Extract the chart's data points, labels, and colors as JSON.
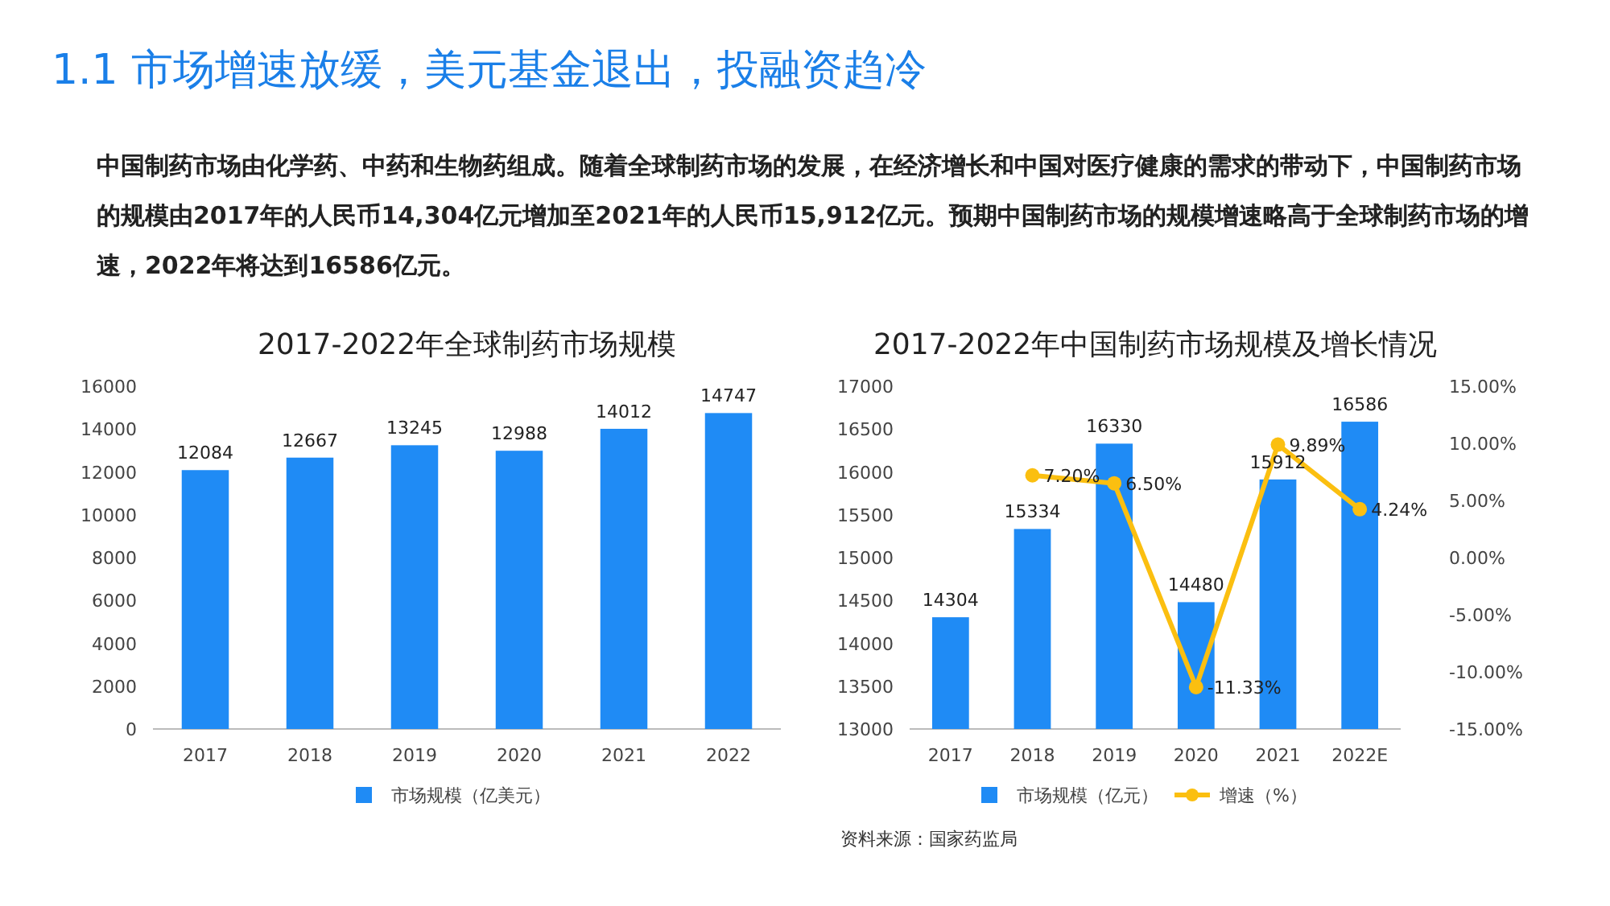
{
  "chart_data": [
    {
      "type": "other",
      "title": "1.1 市场增速放缓，美元基金退出，投融资趋冷",
      "annotations": [
        "中国制药市场由化学药、中药和生物药组成。随着全球制药市场的发展，在经济增长和中国对医疗健康的需求的带动下，中国制药市场的规模由2017年的人民币14,304亿元增加至2021年的人民币15,912亿元。预期中国制药市场的规模增速略高于全球制药市场的增速，2022年将达到16586亿元。"
      ]
    },
    {
      "type": "bar",
      "title": "2017-2022年全球制药市场规模",
      "categories": [
        "2017",
        "2018",
        "2019",
        "2020",
        "2021",
        "2022"
      ],
      "ylim": [
        0,
        16000
      ],
      "yticks": [
        0,
        2000,
        4000,
        6000,
        8000,
        10000,
        12000,
        14000,
        16000
      ],
      "data_labels": true,
      "legend": "bottom",
      "series": [
        {
          "name": "市场规模（亿美元）",
          "color": "#1f8bf5",
          "values": [
            12084,
            12667,
            13245,
            12988,
            14012,
            14747
          ]
        }
      ]
    },
    {
      "type": "bar",
      "title": "2017-2022年中国制药市场规模及增长情况",
      "categories": [
        "2017",
        "2018",
        "2019",
        "2020",
        "2021",
        "2022E"
      ],
      "ylim": [
        13000,
        17000
      ],
      "yticks": [
        13000,
        13500,
        14000,
        14500,
        15000,
        15500,
        16000,
        16500,
        17000
      ],
      "y2lim": [
        -15,
        15
      ],
      "y2ticks": [
        {
          "value": -15,
          "label": "-15.00%"
        },
        {
          "value": -10,
          "label": "-10.00%"
        },
        {
          "value": -5,
          "label": "-5.00%"
        },
        {
          "value": 0,
          "label": "0.00%"
        },
        {
          "value": 5,
          "label": "5.00%"
        },
        {
          "value": 10,
          "label": "10.00%"
        },
        {
          "value": 15,
          "label": "15.00%"
        }
      ],
      "data_labels": true,
      "legend": "bottom",
      "marker": "circle",
      "annotations": [
        "资料来源：国家药监局"
      ],
      "series": [
        {
          "name": "市场规模（亿元）",
          "color": "#1f8bf5",
          "values": [
            14304,
            15334,
            16330,
            14480,
            15912,
            16586
          ]
        },
        {
          "name": "增速（%）",
          "type": "line",
          "axis": "y2",
          "color": "#fbbf10",
          "values": [
            null,
            7.2,
            6.5,
            -11.33,
            9.89,
            4.24
          ],
          "value_labels": [
            null,
            "7.20%",
            "6.50%",
            "-11.33%",
            "9.89%",
            "4.24%"
          ]
        }
      ]
    }
  ]
}
